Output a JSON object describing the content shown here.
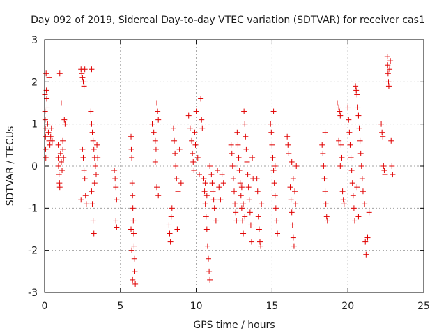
{
  "chart_data": {
    "type": "scatter",
    "title": "Day 092 of 2019, Sidereal Day-to-day VTEC variation (SDTVAR) for receiver cas1",
    "xlabel": "GPS time / hours",
    "ylabel": "SDTVAR / TECUs",
    "xlim": [
      0,
      25
    ],
    "ylim": [
      -3,
      3
    ],
    "x_ticks": [
      "0",
      "5",
      "10",
      "15",
      "20",
      "25"
    ],
    "y_ticks": [
      "-3",
      "-2",
      "-1",
      "0",
      "1",
      "2",
      "3"
    ],
    "grid": true,
    "marker": "+",
    "color": "#e00000",
    "series": [
      {
        "name": "SDTVAR",
        "points": [
          [
            0.02,
            1.7
          ],
          [
            0.02,
            1.5
          ],
          [
            0.03,
            1.3
          ],
          [
            0.04,
            1.1
          ],
          [
            0.05,
            0.9
          ],
          [
            0.06,
            0.7
          ],
          [
            0.07,
            0.4
          ],
          [
            0.08,
            0.2
          ],
          [
            0.1,
            2.2
          ],
          [
            0.12,
            1.8
          ],
          [
            0.14,
            1.6
          ],
          [
            0.16,
            1.4
          ],
          [
            0.2,
            1.0
          ],
          [
            0.25,
            0.8
          ],
          [
            0.3,
            0.6
          ],
          [
            0.35,
            0.5
          ],
          [
            0.4,
            0.7
          ],
          [
            0.45,
            0.9
          ],
          [
            0.5,
            0.6
          ],
          [
            0.3,
            2.1
          ],
          [
            0.9,
            0.5
          ],
          [
            0.9,
            0.2
          ],
          [
            0.92,
            0.0
          ],
          [
            0.95,
            -0.2
          ],
          [
            0.98,
            -0.4
          ],
          [
            1.0,
            -0.5
          ],
          [
            1.05,
            0.3
          ],
          [
            1.1,
            0.1
          ],
          [
            1.15,
            -0.1
          ],
          [
            1.2,
            0.4
          ],
          [
            1.3,
            1.1
          ],
          [
            1.35,
            1.0
          ],
          [
            1.0,
            2.2
          ],
          [
            1.1,
            1.5
          ],
          [
            1.2,
            0.6
          ],
          [
            1.25,
            0.2
          ],
          [
            2.4,
            2.3
          ],
          [
            2.45,
            2.2
          ],
          [
            2.5,
            2.1
          ],
          [
            2.55,
            2.0
          ],
          [
            2.6,
            1.9
          ],
          [
            2.65,
            2.3
          ],
          [
            2.5,
            0.4
          ],
          [
            2.55,
            0.2
          ],
          [
            2.6,
            -0.1
          ],
          [
            2.65,
            -0.3
          ],
          [
            2.7,
            -0.7
          ],
          [
            2.75,
            -0.9
          ],
          [
            2.4,
            -0.8
          ],
          [
            3.1,
            2.3
          ],
          [
            3.05,
            1.3
          ],
          [
            3.1,
            1.0
          ],
          [
            3.15,
            0.8
          ],
          [
            3.2,
            0.6
          ],
          [
            3.25,
            0.4
          ],
          [
            3.3,
            0.2
          ],
          [
            3.35,
            0.0
          ],
          [
            3.4,
            -0.2
          ],
          [
            3.1,
            -0.6
          ],
          [
            3.15,
            -0.9
          ],
          [
            3.2,
            -1.3
          ],
          [
            3.25,
            -1.6
          ],
          [
            3.3,
            -0.4
          ],
          [
            3.45,
            0.5
          ],
          [
            3.5,
            0.2
          ],
          [
            4.6,
            -0.1
          ],
          [
            4.65,
            -0.3
          ],
          [
            4.7,
            -0.5
          ],
          [
            4.75,
            -0.8
          ],
          [
            4.7,
            -1.3
          ],
          [
            4.75,
            -1.45
          ],
          [
            5.7,
            0.7
          ],
          [
            5.72,
            0.4
          ],
          [
            5.75,
            0.2
          ],
          [
            5.78,
            -0.4
          ],
          [
            5.8,
            -0.7
          ],
          [
            5.82,
            -1.0
          ],
          [
            5.85,
            -1.3
          ],
          [
            5.88,
            -1.6
          ],
          [
            5.9,
            -1.9
          ],
          [
            5.92,
            -2.2
          ],
          [
            5.95,
            -2.5
          ],
          [
            5.98,
            -2.8
          ],
          [
            5.8,
            -2.7
          ],
          [
            5.7,
            -1.5
          ],
          [
            5.75,
            -2.0
          ],
          [
            7.1,
            1.0
          ],
          [
            7.2,
            0.8
          ],
          [
            7.3,
            0.6
          ],
          [
            7.35,
            0.4
          ],
          [
            7.4,
            1.5
          ],
          [
            7.45,
            1.3
          ],
          [
            7.5,
            1.1
          ],
          [
            7.4,
            -0.5
          ],
          [
            7.5,
            -0.7
          ],
          [
            7.3,
            0.1
          ],
          [
            8.2,
            -1.4
          ],
          [
            8.25,
            -1.6
          ],
          [
            8.3,
            -1.8
          ],
          [
            8.35,
            -1.2
          ],
          [
            8.4,
            -1.0
          ],
          [
            8.5,
            0.9
          ],
          [
            8.55,
            0.6
          ],
          [
            8.6,
            0.3
          ],
          [
            8.65,
            0.0
          ],
          [
            8.7,
            -0.3
          ],
          [
            8.75,
            -1.5
          ],
          [
            8.8,
            -0.6
          ],
          [
            8.9,
            0.4
          ],
          [
            9.0,
            -0.4
          ],
          [
            9.5,
            1.2
          ],
          [
            9.6,
            0.9
          ],
          [
            9.7,
            0.6
          ],
          [
            9.75,
            0.3
          ],
          [
            9.8,
            0.1
          ],
          [
            9.85,
            -0.1
          ],
          [
            9.9,
            0.8
          ],
          [
            9.95,
            0.5
          ],
          [
            10.0,
            1.3
          ],
          [
            10.1,
            0.2
          ],
          [
            10.2,
            -0.2
          ],
          [
            10.3,
            1.6
          ],
          [
            10.35,
            1.1
          ],
          [
            10.4,
            0.9
          ],
          [
            10.5,
            -0.3
          ],
          [
            10.55,
            -0.6
          ],
          [
            10.6,
            -0.9
          ],
          [
            10.65,
            -1.2
          ],
          [
            10.7,
            -1.5
          ],
          [
            10.75,
            -1.9
          ],
          [
            10.8,
            -2.2
          ],
          [
            10.85,
            -2.5
          ],
          [
            10.9,
            -2.7
          ],
          [
            10.6,
            -0.4
          ],
          [
            10.7,
            -0.7
          ],
          [
            10.9,
            0.0
          ],
          [
            11.0,
            -0.2
          ],
          [
            11.05,
            -0.4
          ],
          [
            11.1,
            -0.6
          ],
          [
            11.15,
            -0.8
          ],
          [
            11.2,
            -1.0
          ],
          [
            11.3,
            -1.3
          ],
          [
            11.4,
            -0.1
          ],
          [
            11.5,
            -0.5
          ],
          [
            11.6,
            -0.8
          ],
          [
            11.7,
            -0.2
          ],
          [
            11.8,
            -0.4
          ],
          [
            12.3,
            0.5
          ],
          [
            12.35,
            0.3
          ],
          [
            12.4,
            0.0
          ],
          [
            12.45,
            -0.3
          ],
          [
            12.5,
            -0.6
          ],
          [
            12.55,
            -0.9
          ],
          [
            12.6,
            -1.1
          ],
          [
            12.65,
            -1.3
          ],
          [
            12.7,
            0.8
          ],
          [
            12.75,
            0.5
          ],
          [
            12.8,
            0.2
          ],
          [
            12.85,
            -0.1
          ],
          [
            12.9,
            -0.4
          ],
          [
            12.95,
            -0.7
          ],
          [
            13.0,
            -1.0
          ],
          [
            13.05,
            -1.3
          ],
          [
            13.1,
            -1.6
          ],
          [
            13.15,
            1.3
          ],
          [
            13.2,
            1.0
          ],
          [
            13.25,
            0.7
          ],
          [
            13.3,
            0.4
          ],
          [
            13.35,
            0.1
          ],
          [
            13.4,
            -0.2
          ],
          [
            13.45,
            -0.5
          ],
          [
            13.5,
            -0.8
          ],
          [
            13.55,
            -1.1
          ],
          [
            13.6,
            -1.4
          ],
          [
            13.65,
            -1.8
          ],
          [
            13.7,
            0.2
          ],
          [
            13.75,
            -0.3
          ],
          [
            13.0,
            -0.5
          ],
          [
            13.1,
            -0.9
          ],
          [
            13.2,
            -1.2
          ],
          [
            14.0,
            -0.3
          ],
          [
            14.05,
            -0.6
          ],
          [
            14.1,
            -1.2
          ],
          [
            14.15,
            -1.5
          ],
          [
            14.2,
            -1.8
          ],
          [
            14.25,
            -1.9
          ],
          [
            14.3,
            -0.9
          ],
          [
            14.9,
            1.0
          ],
          [
            14.95,
            0.8
          ],
          [
            15.0,
            0.5
          ],
          [
            15.05,
            0.2
          ],
          [
            15.1,
            -0.1
          ],
          [
            15.15,
            -0.4
          ],
          [
            15.2,
            -0.7
          ],
          [
            15.25,
            -1.0
          ],
          [
            15.3,
            -1.3
          ],
          [
            15.35,
            -1.6
          ],
          [
            15.1,
            1.3
          ],
          [
            15.2,
            0.0
          ],
          [
            16.0,
            0.7
          ],
          [
            16.05,
            0.5
          ],
          [
            16.1,
            0.3
          ],
          [
            16.2,
            -0.5
          ],
          [
            16.25,
            -0.8
          ],
          [
            16.3,
            -1.1
          ],
          [
            16.35,
            -1.4
          ],
          [
            16.4,
            -1.7
          ],
          [
            16.45,
            -1.9
          ],
          [
            16.5,
            -0.6
          ],
          [
            16.55,
            -0.9
          ],
          [
            16.6,
            0.0
          ],
          [
            16.3,
            0.1
          ],
          [
            16.4,
            -0.3
          ],
          [
            18.3,
            0.5
          ],
          [
            18.35,
            0.3
          ],
          [
            18.4,
            0.0
          ],
          [
            18.45,
            -0.3
          ],
          [
            18.5,
            -0.6
          ],
          [
            18.55,
            -0.9
          ],
          [
            18.6,
            -1.2
          ],
          [
            18.65,
            -1.3
          ],
          [
            18.5,
            0.8
          ],
          [
            19.3,
            1.5
          ],
          [
            19.4,
            1.4
          ],
          [
            19.45,
            1.3
          ],
          [
            19.5,
            1.2
          ],
          [
            19.55,
            0.5
          ],
          [
            19.6,
            0.2
          ],
          [
            19.65,
            -0.6
          ],
          [
            19.7,
            -0.8
          ],
          [
            19.75,
            -0.9
          ],
          [
            19.4,
            0.6
          ],
          [
            19.5,
            0.0
          ],
          [
            20.0,
            1.4
          ],
          [
            20.05,
            1.1
          ],
          [
            20.1,
            0.8
          ],
          [
            20.15,
            0.5
          ],
          [
            20.2,
            0.2
          ],
          [
            20.25,
            -0.1
          ],
          [
            20.3,
            -0.4
          ],
          [
            20.35,
            -0.7
          ],
          [
            20.4,
            -1.0
          ],
          [
            20.45,
            -1.3
          ],
          [
            20.5,
            1.9
          ],
          [
            20.55,
            1.8
          ],
          [
            20.6,
            1.7
          ],
          [
            20.65,
            1.4
          ],
          [
            20.7,
            1.2
          ],
          [
            20.75,
            0.9
          ],
          [
            20.8,
            0.6
          ],
          [
            20.85,
            0.3
          ],
          [
            20.9,
            0.0
          ],
          [
            20.95,
            -0.3
          ],
          [
            21.0,
            -0.6
          ],
          [
            21.1,
            -0.9
          ],
          [
            21.15,
            -1.8
          ],
          [
            21.2,
            -2.1
          ],
          [
            21.3,
            -1.7
          ],
          [
            21.4,
            -1.1
          ],
          [
            20.6,
            -0.5
          ],
          [
            20.7,
            -1.2
          ],
          [
            22.2,
            1.0
          ],
          [
            22.25,
            0.8
          ],
          [
            22.3,
            0.7
          ],
          [
            22.35,
            0.0
          ],
          [
            22.4,
            -0.1
          ],
          [
            22.45,
            -0.2
          ],
          [
            22.6,
            2.6
          ],
          [
            22.62,
            2.4
          ],
          [
            22.65,
            2.2
          ],
          [
            22.68,
            2.0
          ],
          [
            22.7,
            1.9
          ],
          [
            22.75,
            2.3
          ],
          [
            22.8,
            2.5
          ],
          [
            22.85,
            0.6
          ],
          [
            22.9,
            0.0
          ],
          [
            22.95,
            -0.2
          ]
        ]
      }
    ]
  }
}
